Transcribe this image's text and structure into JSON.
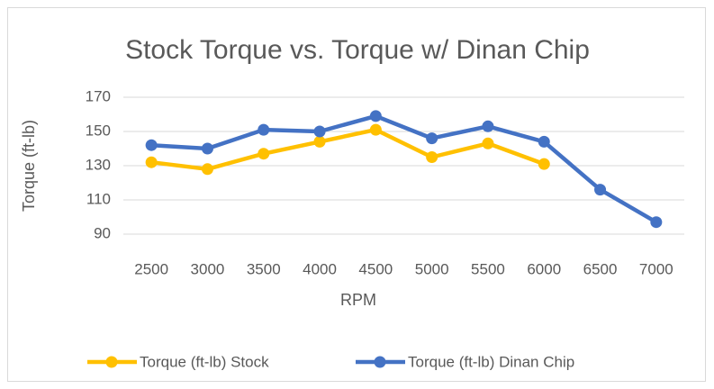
{
  "chart_data": {
    "type": "line",
    "title": "Stock Torque vs. Torque w/ Dinan Chip",
    "xlabel": "RPM",
    "ylabel": "Torque (ft-lb)",
    "categories": [
      "2500",
      "3000",
      "3500",
      "4000",
      "4500",
      "5000",
      "5500",
      "6000",
      "6500",
      "7000"
    ],
    "series": [
      {
        "name": "Torque (ft-lb) Stock",
        "color": "#FFC000",
        "values": [
          132,
          128,
          137,
          144,
          151,
          135,
          143,
          131,
          null,
          null
        ]
      },
      {
        "name": "Torque (ft-lb) Dinan Chip",
        "color": "#4472C4",
        "values": [
          142,
          140,
          151,
          150,
          159,
          146,
          153,
          144,
          116,
          97
        ]
      }
    ],
    "ylim": [
      90,
      170
    ],
    "yticks": [
      90,
      110,
      130,
      150,
      170
    ],
    "grid": true,
    "legend": "bottom"
  }
}
